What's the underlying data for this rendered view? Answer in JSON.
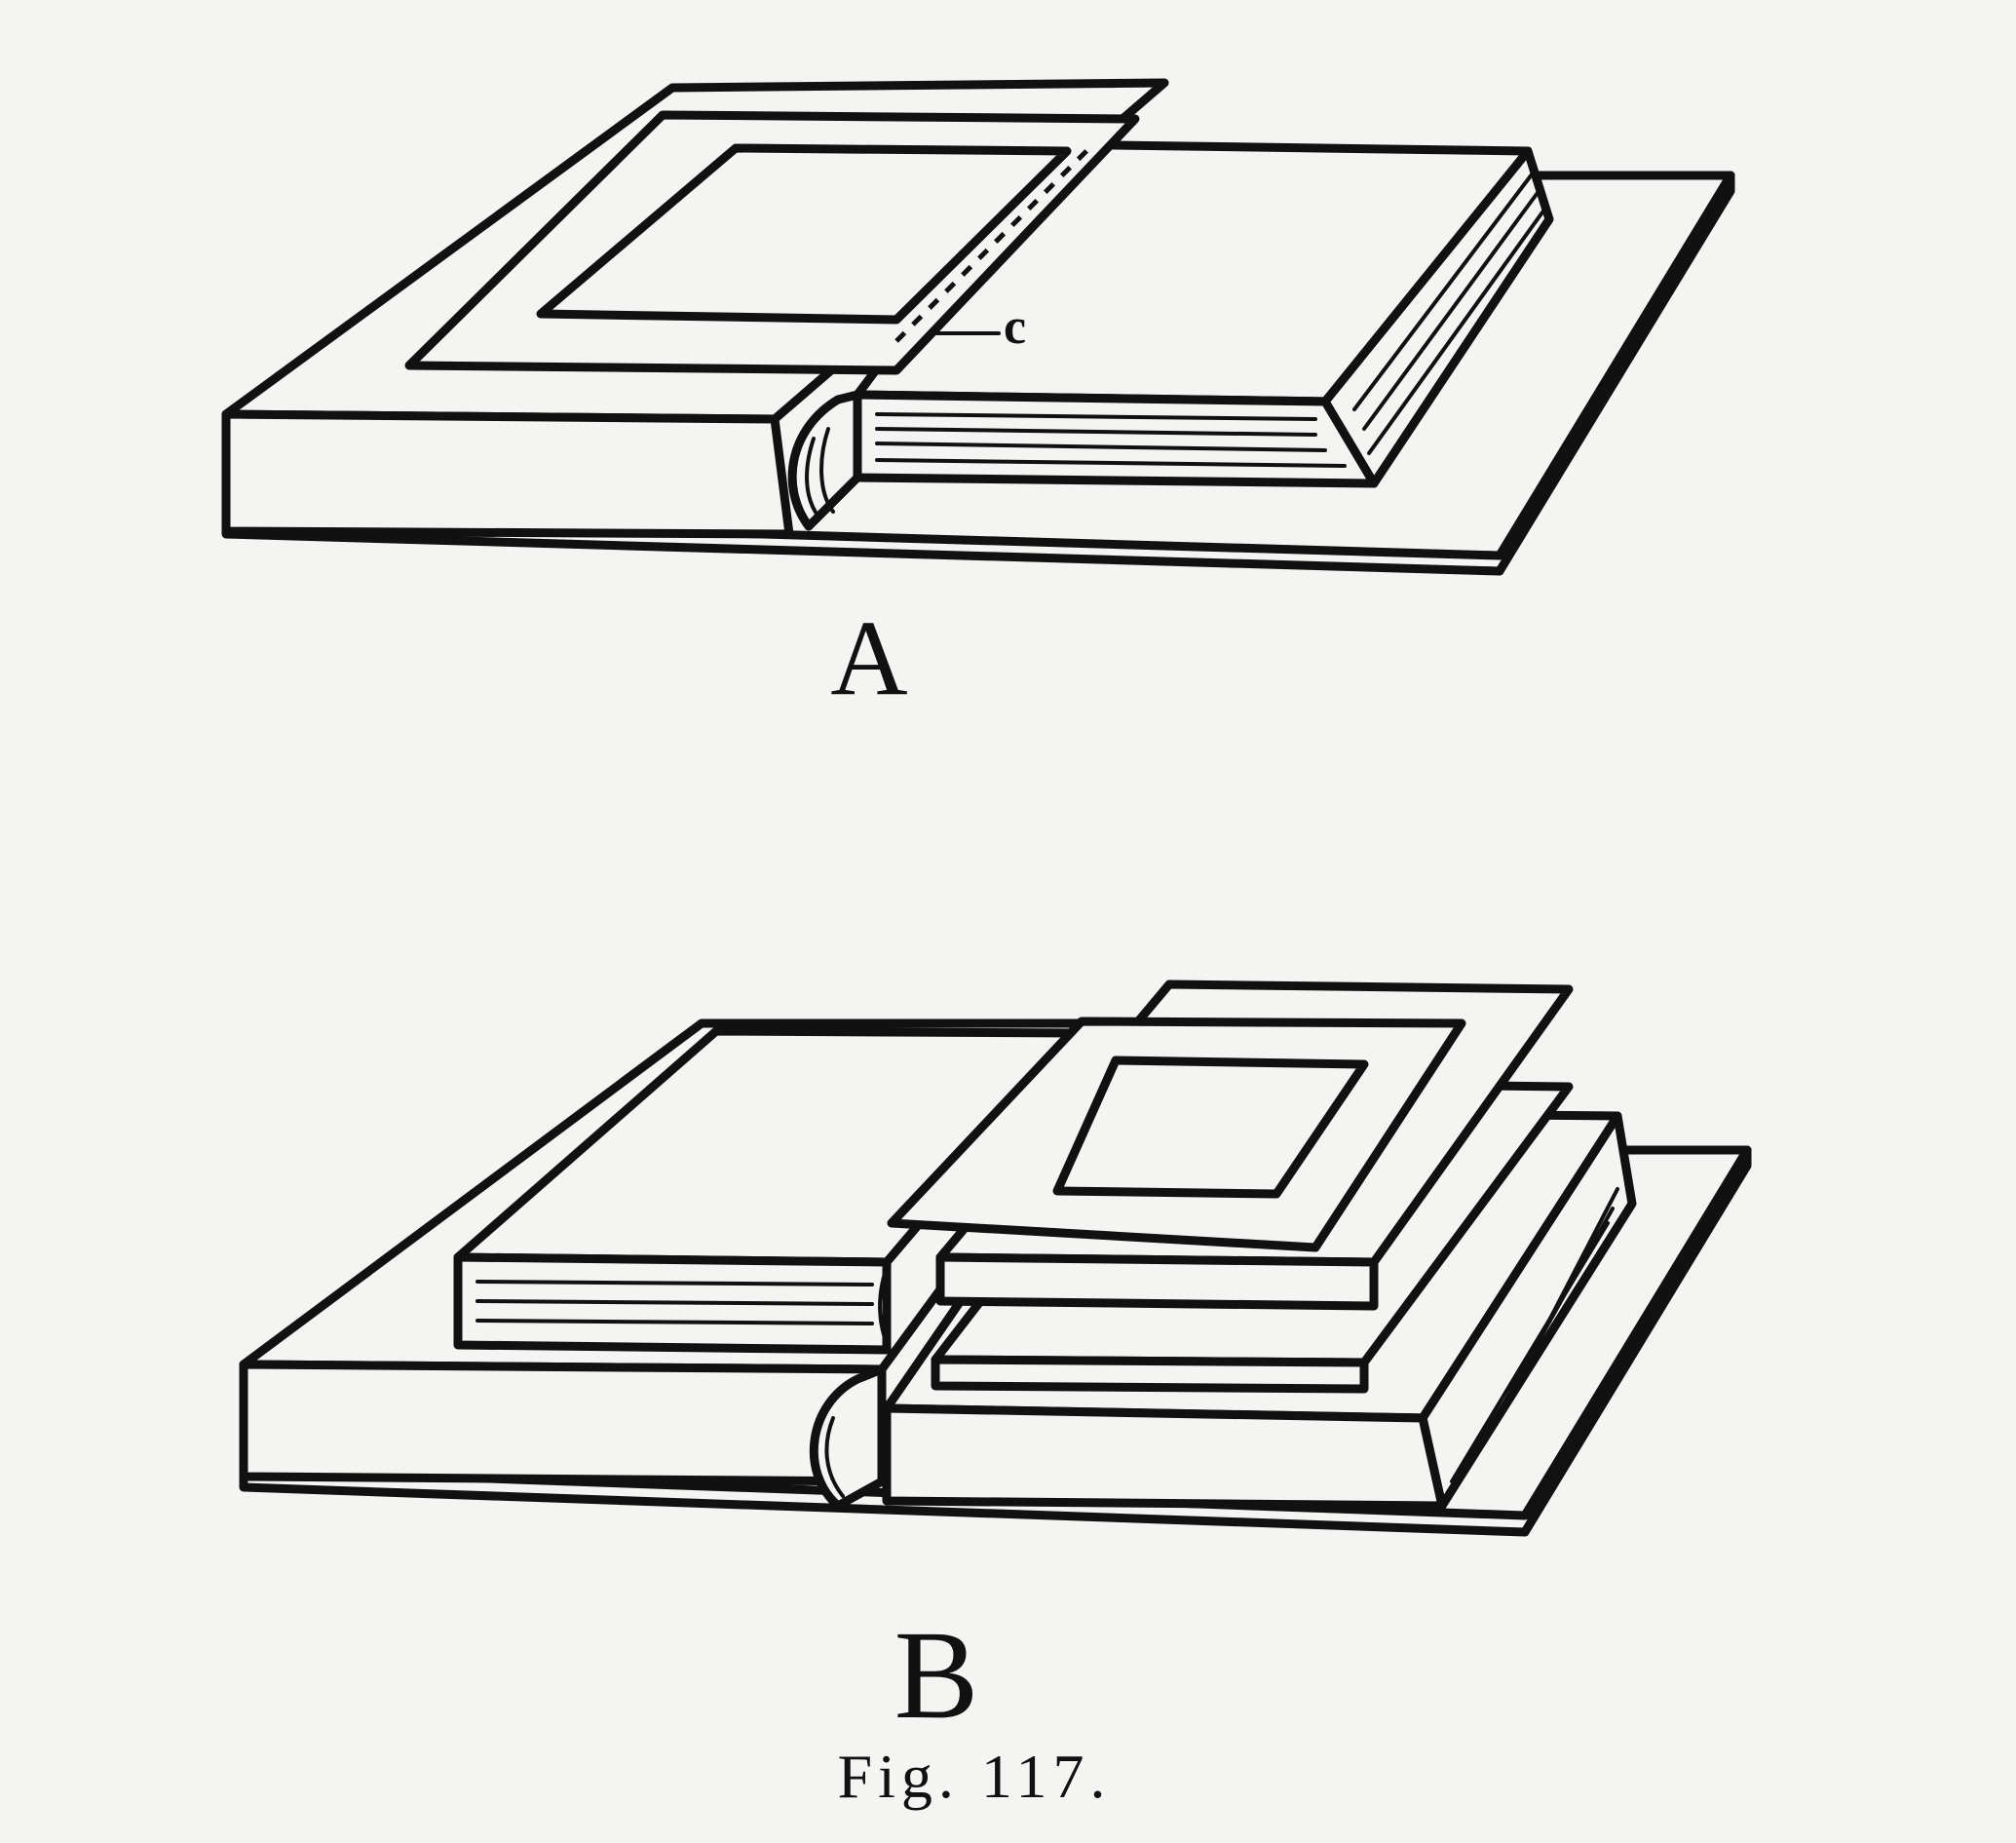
{
  "figure": {
    "panel_a_label": "A",
    "panel_b_label": "B",
    "callout_c": "c",
    "caption": "Fig. 117."
  },
  "colors": {
    "ink": "#111111",
    "paper": "#f4f4f2"
  }
}
